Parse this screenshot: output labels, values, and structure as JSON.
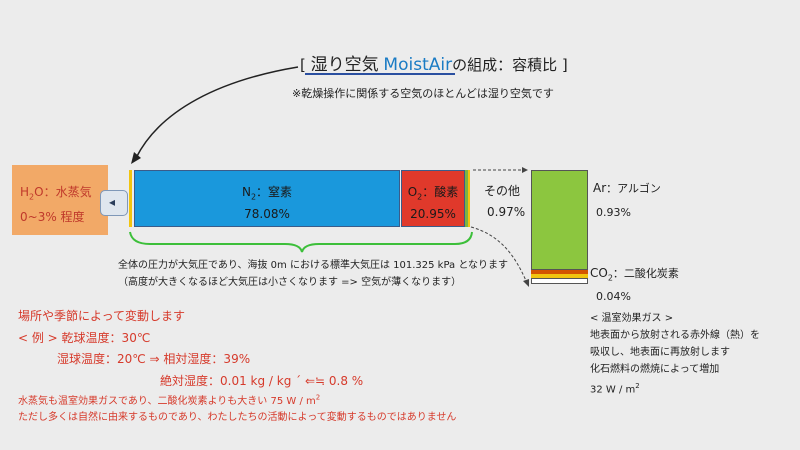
{
  "title": {
    "bracket_open": "[",
    "jp": "湿り空気",
    "en": "MoistAir",
    "rest": "の組成：容積比",
    "bracket_close": "]"
  },
  "note": "※乾燥操作に関係する空気のほとんどは湿り空気です",
  "h2o": {
    "label_prefix": "H",
    "label_sub": "2",
    "label_suffix": "O：水蒸気",
    "range": "0~3% 程度"
  },
  "n2": {
    "name_prefix": "N",
    "name_sub": "2",
    "name_suffix": "：窒素",
    "value": "78.08%"
  },
  "o2": {
    "name_prefix": "O",
    "name_sub": "2",
    "name_suffix": "：酸素",
    "value": "20.95%"
  },
  "other": {
    "name": "その他",
    "value": "0.97%"
  },
  "ar": {
    "name_prefix": "Ar",
    "name_suffix": "：アルゴン",
    "value": "0.93%"
  },
  "co2": {
    "name_prefix": "CO",
    "name_sub": "2",
    "name_suffix": "：二酸化炭素",
    "value": "0.04%"
  },
  "greenhouse": {
    "heading": "< 温室効果ガス >",
    "line1": "地表面から放射される赤外線（熱）を",
    "line2": "吸収し、地表面に再放射します",
    "line3": "化石燃料の燃焼によって増加",
    "power_prefix": "32 W / m",
    "power_sup": "2"
  },
  "pressure": {
    "line1": "全体の圧力が大気圧であり、海抜 0m における標準大気圧は 101.325 kPa となります",
    "line2": "（高度が大きくなるほど大気圧は小さくなります => 空気が薄くなります）"
  },
  "variation": {
    "line1": "場所や季節によって変動します",
    "line2": "< 例 > 乾球温度：30℃",
    "line3": "湿球温度：20℃ ⇒ 相対湿度：39%",
    "line4": "絶対湿度：0.01 kg / kg ´ ⇐≒ 0.8 %",
    "line5_prefix": "水蒸気も温室効果ガスであり、二酸化炭素よりも大きい 75 W / m",
    "line5_sup": "2",
    "line6": "ただし多くは自然に由来するものであり、わたしたちの活動によって変動するものではありません"
  },
  "colors": {
    "n2": "#1a98dc",
    "o2": "#e0392b",
    "ar": "#8cc63f",
    "h2o": "#f2a967",
    "accent": "#1a7bc4",
    "red_text": "#d63a2b",
    "brace": "#3cbf3a"
  },
  "icons": [
    "curved-arrow-icon",
    "dashed-arrow-icon",
    "brace-icon",
    "left-arrow-icon"
  ]
}
